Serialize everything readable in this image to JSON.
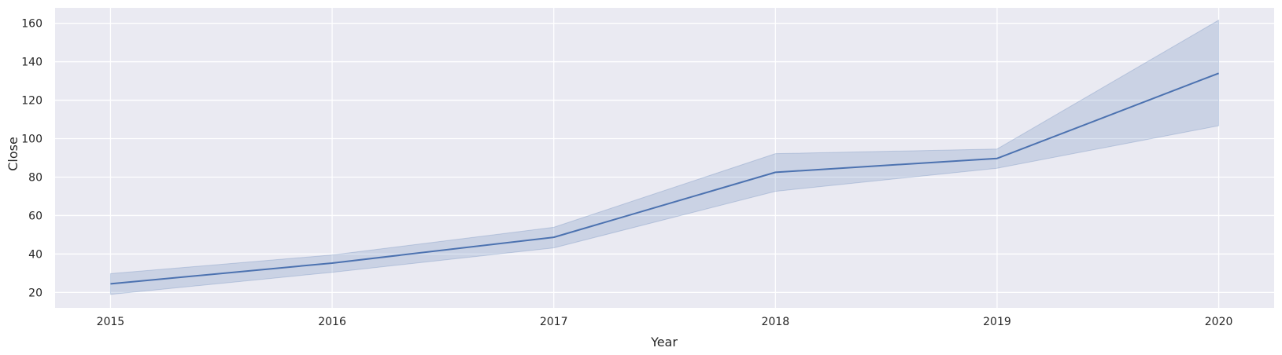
{
  "chart_data": {
    "type": "line",
    "title": "",
    "xlabel": "Year",
    "ylabel": "Close",
    "x": [
      2015,
      2016,
      2017,
      2018,
      2019,
      2020
    ],
    "xlim": [
      2014.75,
      2020.25
    ],
    "ylim": [
      12,
      168
    ],
    "xticks": [
      2015,
      2016,
      2017,
      2018,
      2019,
      2020
    ],
    "yticks": [
      20,
      40,
      60,
      80,
      100,
      120,
      140,
      160
    ],
    "grid": true,
    "series": [
      {
        "values": [
          24.5,
          35.3,
          48.7,
          82.5,
          89.7,
          134.0
        ],
        "ci_lower": [
          19.0,
          30.5,
          43.2,
          72.6,
          84.6,
          106.7
        ],
        "ci_upper": [
          29.8,
          39.5,
          53.9,
          92.2,
          94.6,
          161.6
        ],
        "color": "#4c72b0"
      }
    ],
    "background_color": "#eaeaf2",
    "grid_color": "#ffffff"
  }
}
